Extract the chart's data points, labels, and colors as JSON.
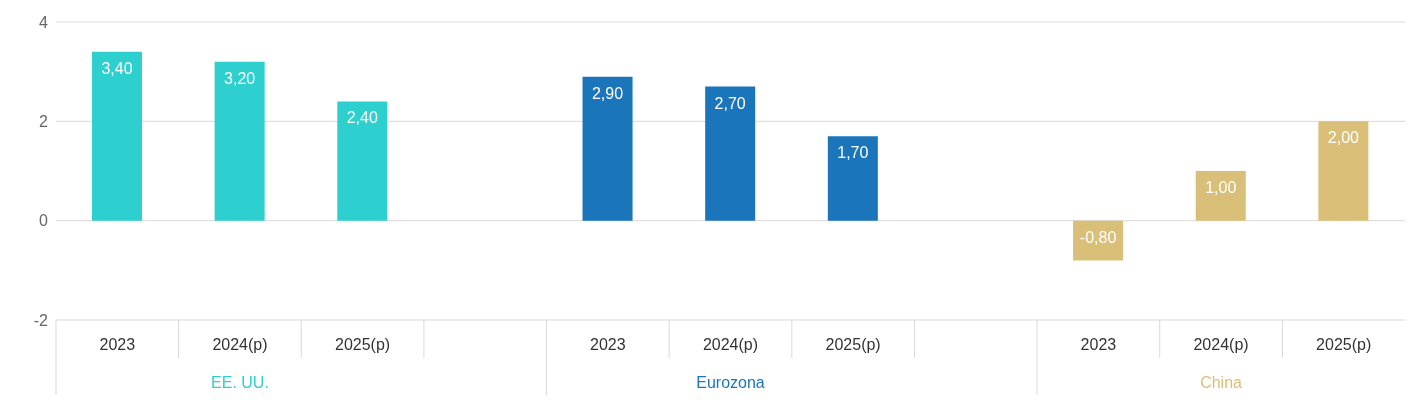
{
  "chart_data": {
    "type": "bar",
    "categories": [
      "2023",
      "2024(p)",
      "2025(p)",
      null,
      "2023",
      "2024(p)",
      "2025(p)",
      null,
      "2023",
      "2024(p)",
      "2025(p)"
    ],
    "series": [
      {
        "name": "EE. UU.",
        "color": "#2ecfcf",
        "values": [
          3.4,
          3.2,
          2.4,
          null,
          null,
          null,
          null,
          null,
          null,
          null,
          null
        ],
        "value_labels": [
          "3,40",
          "3,20",
          "2,40",
          null,
          null,
          null,
          null,
          null,
          null,
          null,
          null
        ]
      },
      {
        "name": "Eurozona",
        "color": "#1a75bb",
        "values": [
          null,
          null,
          null,
          null,
          2.9,
          2.7,
          1.7,
          null,
          null,
          null,
          null
        ],
        "value_labels": [
          null,
          null,
          null,
          null,
          "2,90",
          "2,70",
          "1,70",
          null,
          null,
          null,
          null
        ]
      },
      {
        "name": "China",
        "color": "#d9bf77",
        "values": [
          null,
          null,
          null,
          null,
          null,
          null,
          null,
          null,
          -0.8,
          1.0,
          2.0
        ],
        "value_labels": [
          null,
          null,
          null,
          null,
          null,
          null,
          null,
          null,
          "-0,80",
          "1,00",
          "2,00"
        ]
      }
    ],
    "ylim": [
      -2,
      4
    ],
    "yticks": [
      -2,
      0,
      2,
      4
    ],
    "grid": "y"
  }
}
